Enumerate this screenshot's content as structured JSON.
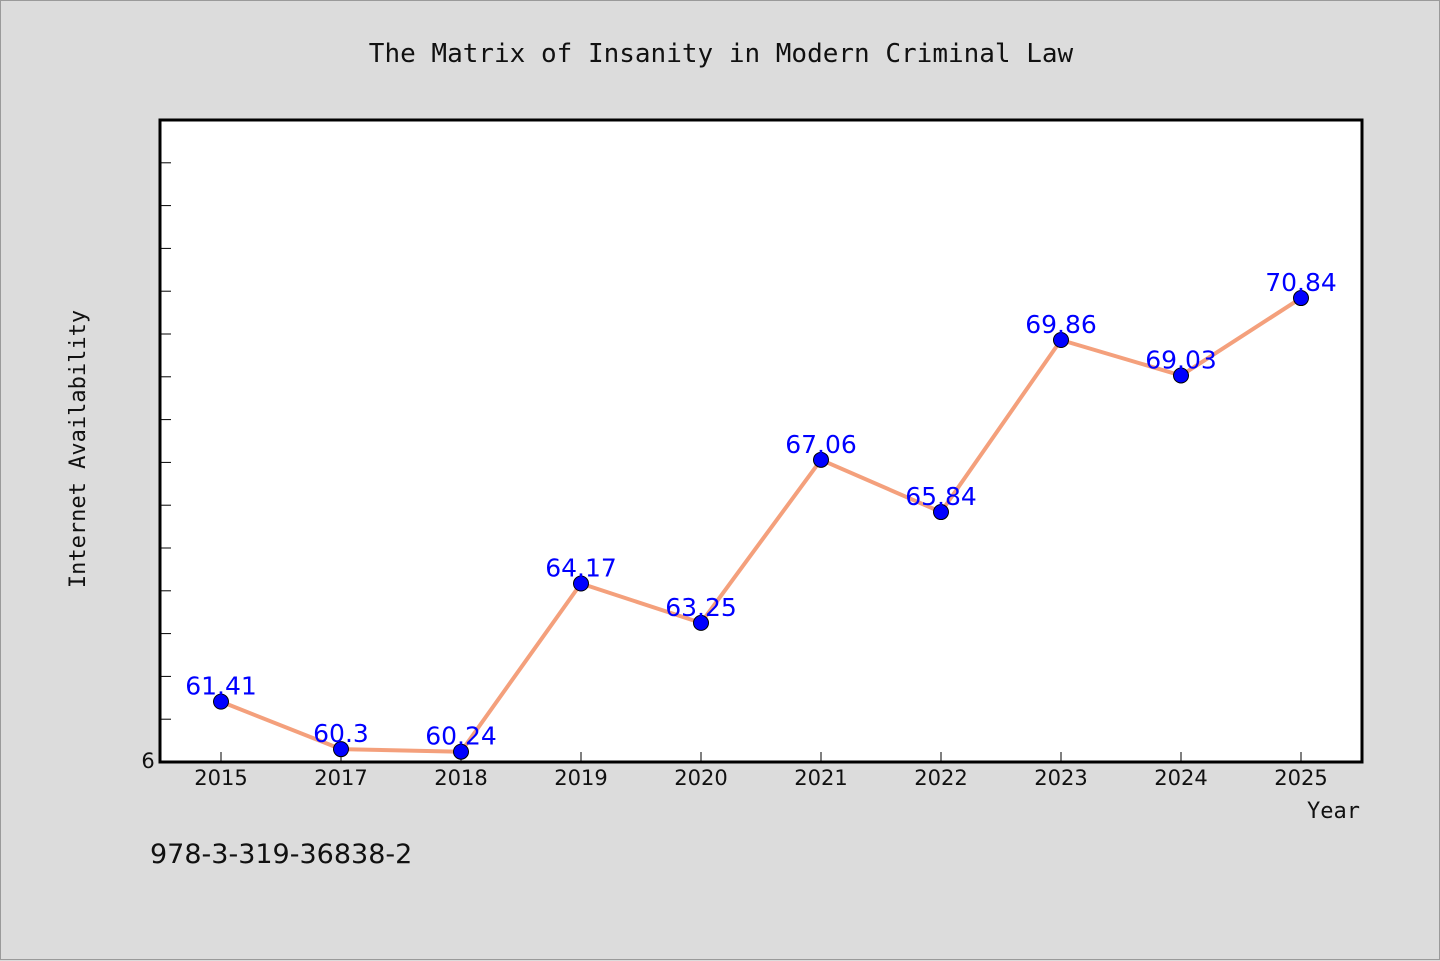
{
  "chart_data": {
    "type": "line",
    "title": "The Matrix of Insanity in Modern Criminal Law",
    "xlabel": "Year",
    "ylabel": "Internet Availability",
    "categories": [
      "2015",
      "2017",
      "2018",
      "2019",
      "2020",
      "2021",
      "2022",
      "2023",
      "2024",
      "2025"
    ],
    "values": [
      61.41,
      60.3,
      60.24,
      64.17,
      63.25,
      67.06,
      65.84,
      69.86,
      69.03,
      70.84
    ],
    "data_labels": [
      "61.41",
      "60.3",
      "60.24",
      "64.17",
      "63.25",
      "67.06",
      "65.84",
      "69.86",
      "69.03",
      "70.84"
    ],
    "ylim": [
      60,
      75
    ],
    "y_tick_label": "6",
    "line_color": "#f4a07c",
    "marker_color": "#0000ff",
    "label_color": "#0000ff",
    "grid": false,
    "legend": "none"
  },
  "footer": {
    "isbn": "978-3-319-36838-2"
  }
}
